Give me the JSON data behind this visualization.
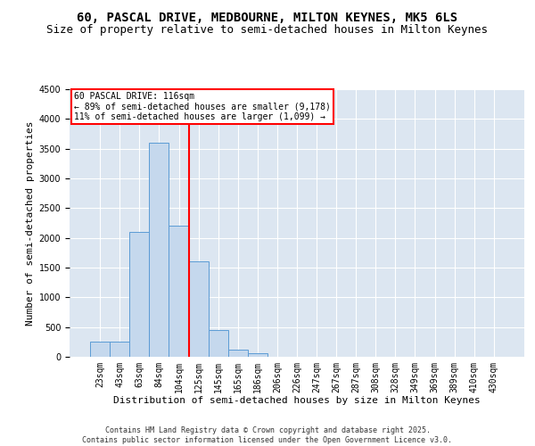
{
  "title1": "60, PASCAL DRIVE, MEDBOURNE, MILTON KEYNES, MK5 6LS",
  "title2": "Size of property relative to semi-detached houses in Milton Keynes",
  "xlabel": "Distribution of semi-detached houses by size in Milton Keynes",
  "ylabel": "Number of semi-detached properties",
  "footer": "Contains HM Land Registry data © Crown copyright and database right 2025.\nContains public sector information licensed under the Open Government Licence v3.0.",
  "categories": [
    "23sqm",
    "43sqm",
    "63sqm",
    "84sqm",
    "104sqm",
    "125sqm",
    "145sqm",
    "165sqm",
    "186sqm",
    "206sqm",
    "226sqm",
    "247sqm",
    "267sqm",
    "287sqm",
    "308sqm",
    "328sqm",
    "349sqm",
    "369sqm",
    "389sqm",
    "410sqm",
    "430sqm"
  ],
  "values": [
    250,
    250,
    2100,
    3600,
    2200,
    1600,
    450,
    120,
    60,
    0,
    0,
    0,
    0,
    0,
    0,
    0,
    0,
    0,
    0,
    0,
    0
  ],
  "bar_color": "#c5d8ed",
  "bar_edge_color": "#5b9bd5",
  "vline_x_index": 4.5,
  "vline_color": "red",
  "annotation_title": "60 PASCAL DRIVE: 116sqm",
  "annotation_line1": "← 89% of semi-detached houses are smaller (9,178)",
  "annotation_line2": "11% of semi-detached houses are larger (1,099) →",
  "annotation_box_color": "red",
  "annotation_text_color": "black",
  "annotation_bg_color": "white",
  "ylim": [
    0,
    4500
  ],
  "yticks": [
    0,
    500,
    1000,
    1500,
    2000,
    2500,
    3000,
    3500,
    4000,
    4500
  ],
  "bg_color": "#dce6f1",
  "title1_fontsize": 10,
  "title2_fontsize": 9,
  "xlabel_fontsize": 8,
  "ylabel_fontsize": 8,
  "footer_fontsize": 6,
  "tick_fontsize": 7,
  "annot_fontsize": 7
}
